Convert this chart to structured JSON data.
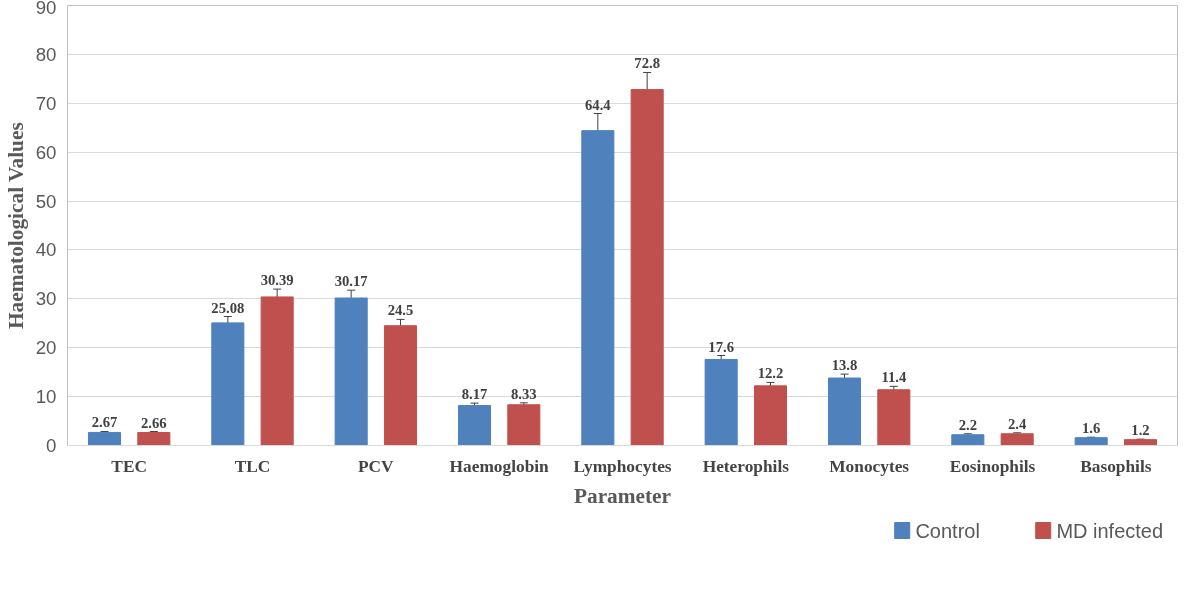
{
  "chart_data": {
    "type": "bar",
    "xlabel": "Parameter",
    "ylabel": "Haematological Values",
    "categories": [
      "TEC",
      "TLC",
      "PCV",
      "Haemoglobin",
      "Lymphocytes",
      "Heterophils",
      "Monocytes",
      "Eosinophils",
      "Basophils"
    ],
    "series": [
      {
        "name": "Control",
        "color": "#4f81bd",
        "values": [
          2.67,
          25.08,
          30.17,
          8.17,
          64.4,
          17.6,
          13.8,
          2.2,
          1.6
        ],
        "errors": [
          0.2,
          1.3,
          1.6,
          0.5,
          3.5,
          0.8,
          0.8,
          0.2,
          0.1
        ]
      },
      {
        "name": "MD infected",
        "color": "#c0504d",
        "values": [
          2.66,
          30.39,
          24.5,
          8.33,
          72.8,
          12.2,
          11.4,
          2.4,
          1.2
        ],
        "errors": [
          0.2,
          1.6,
          1.3,
          0.4,
          3.5,
          0.7,
          0.7,
          0.2,
          0.1
        ]
      }
    ],
    "ylim": [
      0,
      90
    ],
    "yticks": [
      0,
      10,
      20,
      30,
      40,
      50,
      60,
      70,
      80,
      90
    ],
    "grid": "y",
    "legend": "bottom right",
    "data_labels": true
  }
}
